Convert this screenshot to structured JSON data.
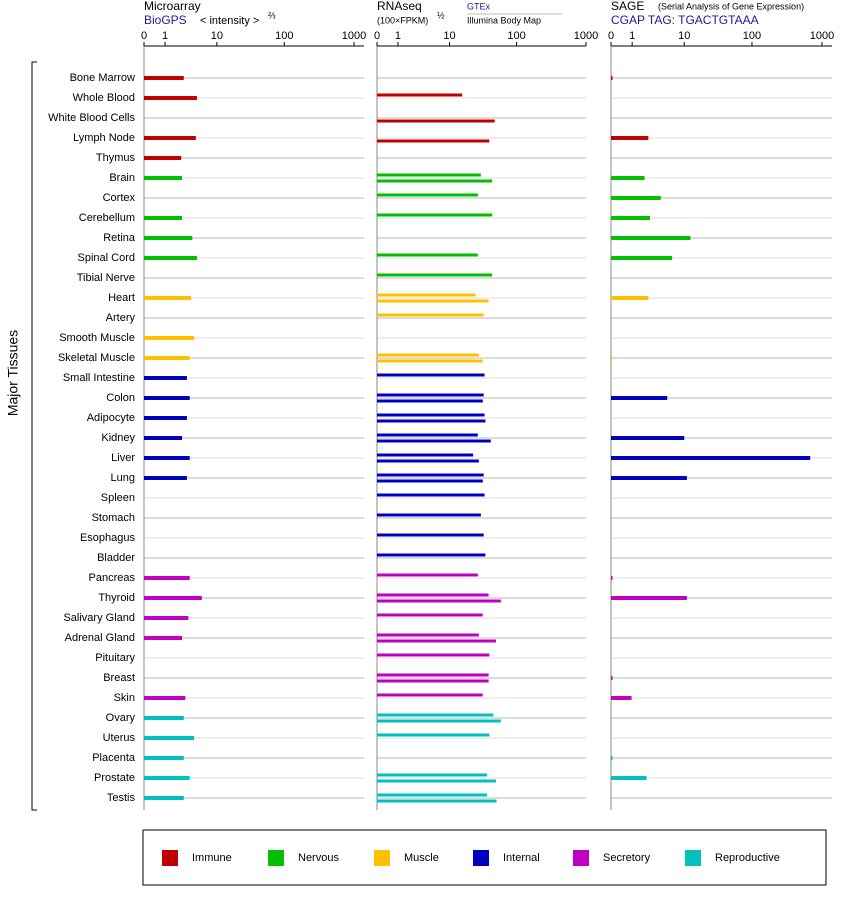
{
  "chart_data": {
    "type": "bar",
    "orientation": "horizontal",
    "scale": "symlog",
    "grid": true,
    "y_label": "Major Tissues",
    "groups": [
      {
        "name": "Immune",
        "color": "#c00000",
        "categories": [
          "Bone Marrow",
          "Whole Blood",
          "White Blood Cells",
          "Lymph Node",
          "Thymus"
        ]
      },
      {
        "name": "Nervous",
        "color": "#00c000",
        "categories": [
          "Brain",
          "Cortex",
          "Cerebellum",
          "Retina",
          "Spinal Cord",
          "Tibial Nerve"
        ]
      },
      {
        "name": "Muscle",
        "color": "#ffc000",
        "categories": [
          "Heart",
          "Artery",
          "Smooth Muscle",
          "Skeletal Muscle"
        ]
      },
      {
        "name": "Internal",
        "color": "#0000c0",
        "categories": [
          "Small Intestine",
          "Colon",
          "Adipocyte",
          "Kidney",
          "Liver",
          "Lung",
          "Spleen",
          "Stomach",
          "Esophagus",
          "Bladder"
        ]
      },
      {
        "name": "Secretory",
        "color": "#c000c0",
        "categories": [
          "Pancreas",
          "Thyroid",
          "Salivary Gland",
          "Adrenal Gland",
          "Pituitary",
          "Breast",
          "Skin"
        ]
      },
      {
        "name": "Reproductive",
        "color": "#00c0c0",
        "categories": [
          "Ovary",
          "Uterus",
          "Placenta",
          "Prostate",
          "Testis"
        ]
      }
    ],
    "panels": [
      {
        "title": "Microarray",
        "unit": "< intensity >",
        "unit_exponent": "⅔",
        "xlim": [
          0,
          1000
        ],
        "xticks": [
          0,
          1,
          10,
          100,
          1000
        ],
        "series": [
          {
            "name": "BioGPS",
            "values": [
              2.7,
              4.7,
              null,
              4.5,
              2.4,
              2.5,
              null,
              2.5,
              3.9,
              4.7,
              null,
              3.7,
              null,
              4.2,
              3.5,
              3.1,
              3.5,
              3.1,
              2.5,
              3.5,
              3.1,
              null,
              null,
              null,
              null,
              3.5,
              5.7,
              3.3,
              2.5,
              null,
              null,
              2.9,
              2.7,
              4.2,
              2.7,
              3.5,
              2.7
            ]
          }
        ]
      },
      {
        "title": "RNAseq",
        "unit": "(100×FPKM)",
        "unit_exponent": "½",
        "xlim": [
          0,
          1000
        ],
        "xticks": [
          0,
          1,
          10,
          100,
          1000
        ],
        "series": [
          {
            "name": "GTEx",
            "values": [
              null,
              15.7,
              null,
              null,
              null,
              30,
              27,
              44,
              null,
              27,
              44,
              25,
              33,
              null,
              28,
              34,
              33,
              34,
              27,
              23,
              33,
              34,
              30,
              33,
              35,
              27,
              39,
              32,
              28,
              40,
              39,
              32,
              46,
              40,
              null,
              37,
              37
            ]
          },
          {
            "name": "Illumina Body Map",
            "values": [
              null,
              null,
              48,
              40,
              null,
              44,
              null,
              null,
              null,
              null,
              null,
              39,
              null,
              null,
              32,
              null,
              32,
              35,
              42,
              28,
              32,
              null,
              null,
              null,
              null,
              null,
              59,
              null,
              50,
              null,
              39,
              null,
              59,
              null,
              null,
              50,
              51
            ]
          }
        ]
      },
      {
        "title": "SAGE",
        "subtitle": "(Serial Analysis of Gene Expression)",
        "xlim": [
          0,
          1000
        ],
        "xticks": [
          0,
          1,
          10,
          100,
          1000
        ],
        "series": [
          {
            "name": "CGAP TAG: TGACTGTAAA",
            "values": [
              0.05,
              null,
              null,
              2.4,
              null,
              2.0,
              4.1,
              2.6,
              12.5,
              6.4,
              null,
              2.4,
              null,
              null,
              0.04,
              null,
              5.3,
              null,
              10,
              680,
              11,
              null,
              null,
              null,
              null,
              0.05,
              11,
              null,
              null,
              null,
              0.05,
              0.96,
              null,
              null,
              0.05,
              2.2,
              null
            ]
          }
        ]
      }
    ]
  }
}
